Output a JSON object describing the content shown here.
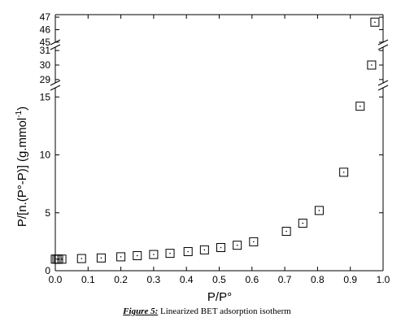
{
  "chart_data": {
    "type": "scatter",
    "xlabel": "P/P°",
    "ylabel": "P/[n.(P°-P)] (g.mmol",
    "ylabel_sup": "-1",
    "ylabel_close": ")",
    "xlim": [
      0.0,
      1.0
    ],
    "x_ticks": [
      "0.0",
      "0.1",
      "0.2",
      "0.3",
      "0.4",
      "0.5",
      "0.6",
      "0.7",
      "0.8",
      "0.9",
      "1.0"
    ],
    "y_axis_segments": [
      {
        "range": [
          0,
          16
        ],
        "ticks": [
          "0",
          "5",
          "10",
          "15"
        ]
      },
      {
        "range": [
          28.6,
          31.4
        ],
        "ticks": [
          "29",
          "30",
          "31"
        ]
      },
      {
        "range": [
          44.8,
          47.2
        ],
        "ticks": [
          "45",
          "46",
          "47"
        ]
      }
    ],
    "y_axis_break": true,
    "grid": false,
    "legend": "none",
    "marker": "open-square-with-center-dot",
    "x": [
      0.0,
      0.005,
      0.01,
      0.02,
      0.08,
      0.14,
      0.2,
      0.25,
      0.3,
      0.35,
      0.405,
      0.455,
      0.505,
      0.555,
      0.605,
      0.705,
      0.755,
      0.805,
      0.88,
      0.93,
      0.965,
      0.975
    ],
    "y": [
      1.0,
      1.0,
      1.0,
      1.0,
      1.05,
      1.1,
      1.2,
      1.3,
      1.4,
      1.5,
      1.65,
      1.8,
      2.0,
      2.2,
      2.5,
      3.4,
      4.1,
      5.2,
      8.5,
      14.2,
      30.0,
      46.6
    ]
  },
  "caption": {
    "label": "Figure 5:",
    "text": " Linearized BET adsorption isotherm"
  }
}
